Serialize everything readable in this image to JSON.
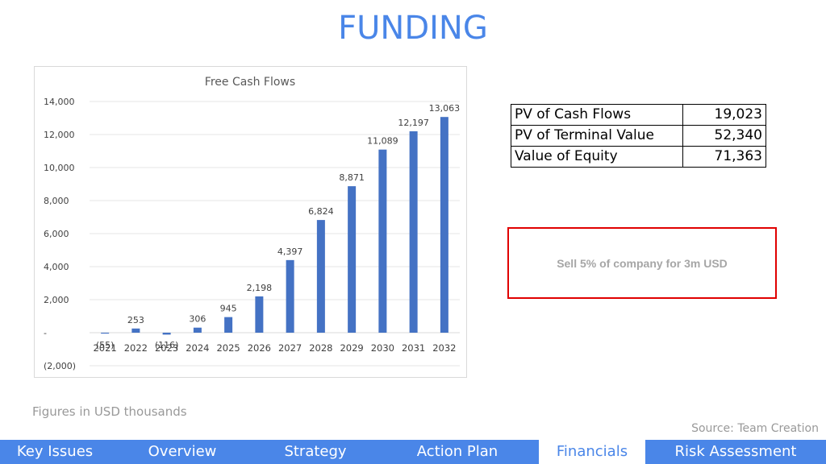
{
  "page": {
    "title": "FUNDING",
    "figures_note": "Figures in USD thousands",
    "source_note": "Source: Team Creation",
    "callout_text": "Sell 5% of company for 3m USD"
  },
  "valuation_table": [
    {
      "label": "PV of Cash Flows",
      "value": "19,023"
    },
    {
      "label": "PV of Terminal Value",
      "value": "52,340"
    },
    {
      "label": "Value of Equity",
      "value": "71,363"
    }
  ],
  "nav": {
    "tabs": [
      {
        "label": "Key Issues",
        "active": false
      },
      {
        "label": "Overview",
        "active": false
      },
      {
        "label": "Strategy",
        "active": false
      },
      {
        "label": "Action Plan",
        "active": false
      },
      {
        "label": "Financials",
        "active": true
      },
      {
        "label": "Risk Assessment",
        "active": false
      }
    ]
  },
  "colors": {
    "accent": "#4a86e8",
    "bar": "#4472c4",
    "callout_border": "#e00000"
  },
  "chart_data": {
    "type": "bar",
    "title": "Free Cash Flows",
    "xlabel": "",
    "ylabel": "",
    "categories": [
      "2021",
      "2022",
      "2023",
      "2024",
      "2025",
      "2026",
      "2027",
      "2028",
      "2029",
      "2030",
      "2031",
      "2032"
    ],
    "values": [
      -55,
      253,
      -116,
      306,
      945,
      2198,
      4397,
      6824,
      8871,
      11089,
      12197,
      13063
    ],
    "data_labels": [
      "(55)",
      "253",
      "(116)",
      "306",
      "945",
      "2,198",
      "4,397",
      "6,824",
      "8,871",
      "11,089",
      "12,197",
      "13,063"
    ],
    "ylim": [
      -2000,
      14000
    ],
    "yticks": [
      14000,
      12000,
      10000,
      8000,
      6000,
      4000,
      2000,
      0,
      -2000
    ],
    "ytick_labels": [
      "14,000",
      "12,000",
      "10,000",
      "8,000",
      "6,000",
      "4,000",
      "2,000",
      "-",
      "(2,000)"
    ],
    "grid": true,
    "legend": "none"
  }
}
